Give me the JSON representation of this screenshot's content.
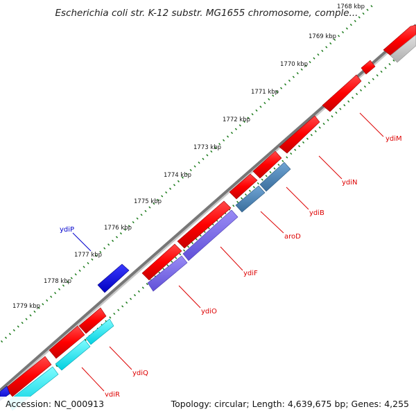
{
  "title": "Escherichia coli str. K-12 substr. MG1655 chromosome, comple...",
  "ticks": [
    "1768 kbp",
    "1769 kbp",
    "1770 kbp",
    "1771 kbp",
    "1772 kbp",
    "1773 kbp",
    "1774 kbp",
    "1775 kbp",
    "1776 kbp",
    "1777 kbp",
    "1778 kbp",
    "1779 kbp"
  ],
  "genes": [
    "ydiM",
    "ydiN",
    "ydiB",
    "aroD",
    "ydiF",
    "ydiO",
    "ydiP",
    "ydiQ",
    "ydiR"
  ],
  "footer": {
    "accession": "Accession: NC_000913",
    "stats": "Topology: circular; Length: 4,639,675 bp; Genes: 4,255"
  },
  "colors": {
    "forward": "#ff0000",
    "ydiB": "#4682b4",
    "aroD": "#4682b4",
    "ydiF": "#7b68ee",
    "ydiO": "#7b68ee",
    "ydiP": "#0000ff",
    "ydiQ": "#00e5ee",
    "ydiR": "#00e5ee",
    "backbone": "#7a7a7a",
    "ticks": "#1a7a1a",
    "label_red": "#dd0000",
    "label_blue": "#0000cc"
  }
}
